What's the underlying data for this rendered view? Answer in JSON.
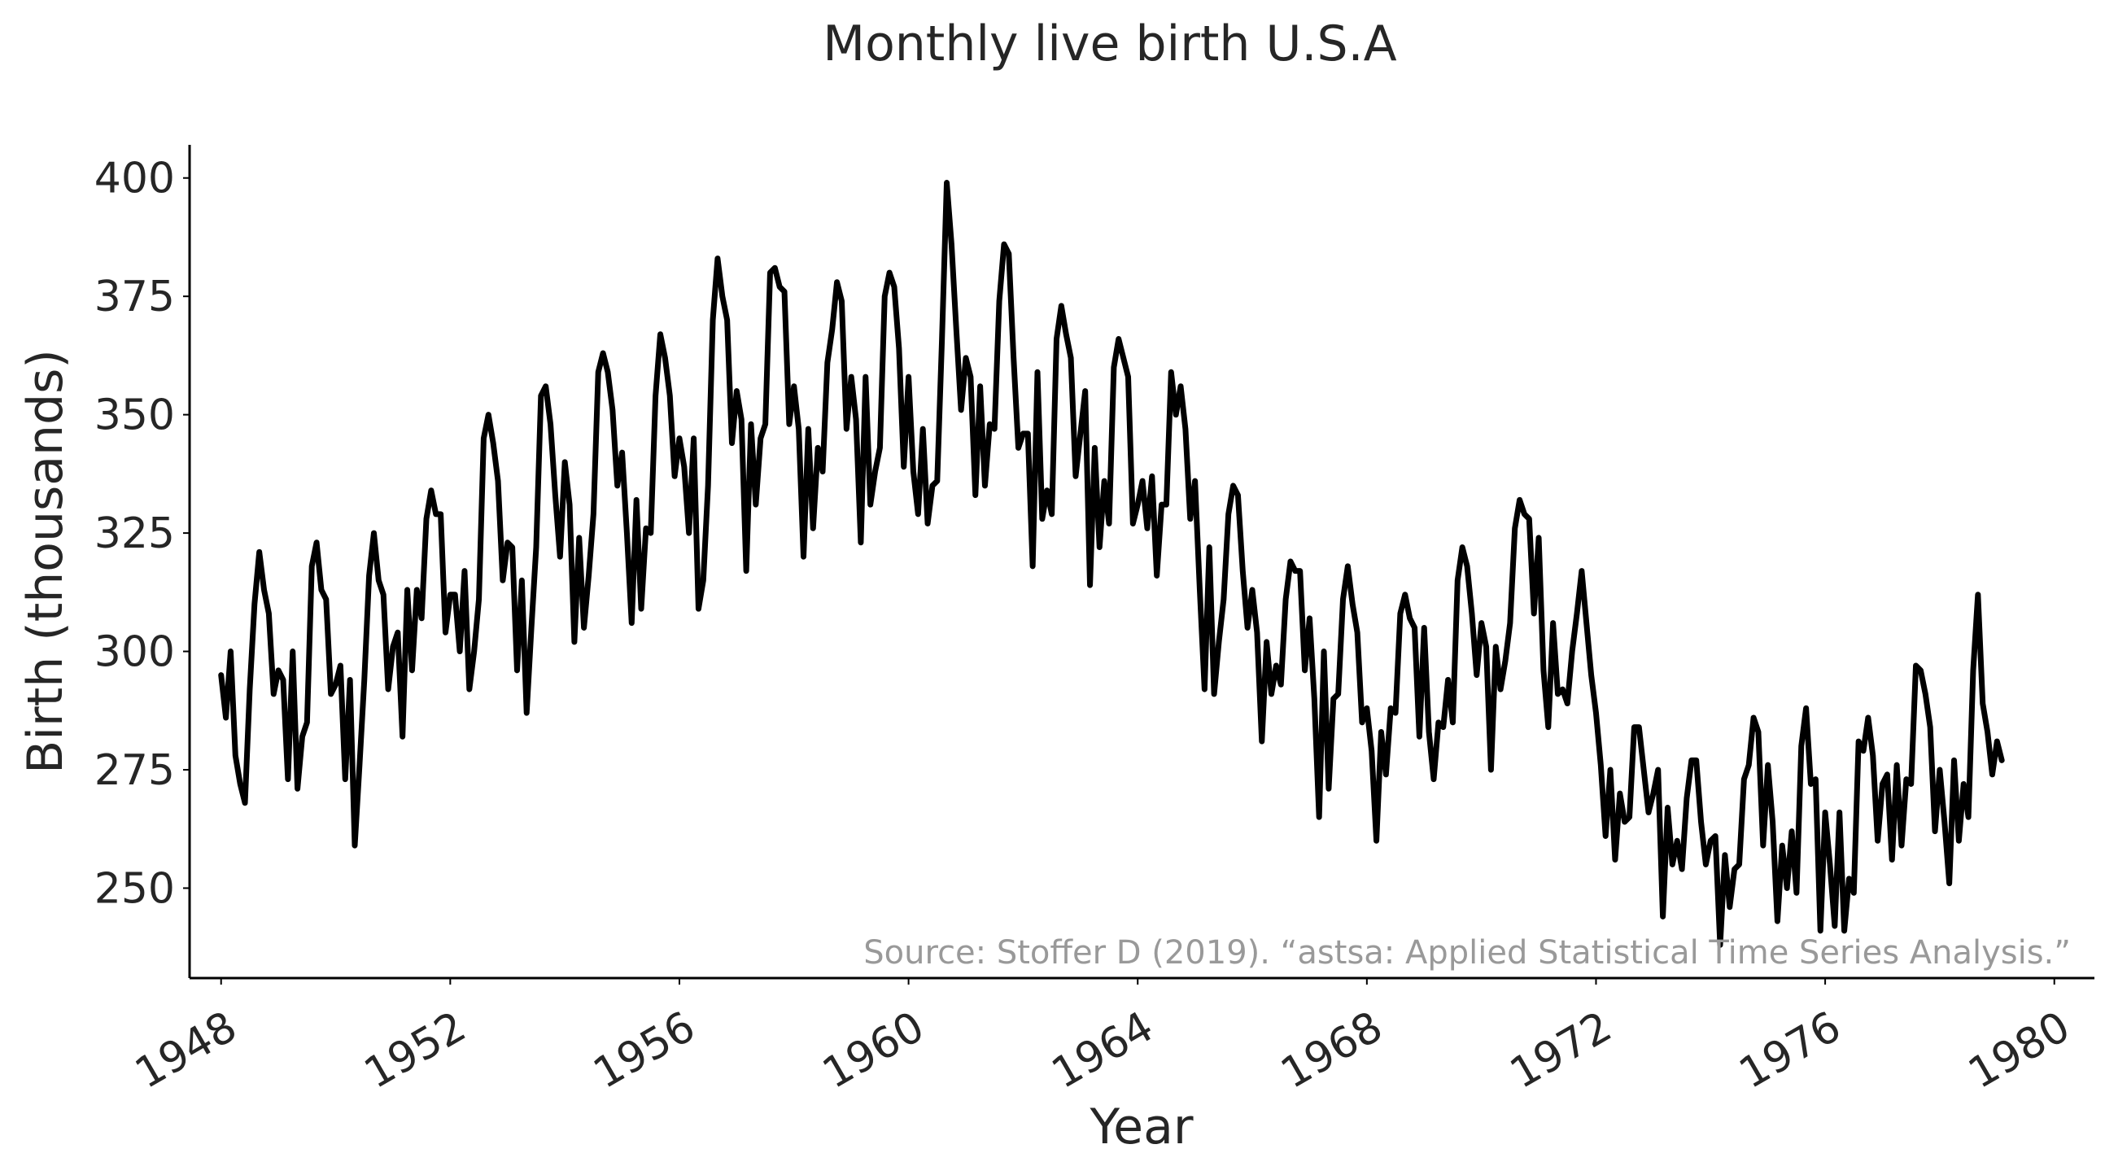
{
  "chart_data": {
    "type": "line",
    "title": "Monthly live birth U.S.A",
    "xlabel": "Year",
    "ylabel": "Birth (thousands)",
    "source_note": "Source: Stoffer D (2019). “astsa: Applied Statistical Time Series Analysis.”",
    "xlim": [
      1947.45,
      1980.7
    ],
    "ylim": [
      231,
      407
    ],
    "x_ticks": [
      1948,
      1952,
      1956,
      1960,
      1964,
      1968,
      1972,
      1976,
      1980
    ],
    "x_tick_labels": [
      "1948",
      "1952",
      "1956",
      "1960",
      "1964",
      "1968",
      "1972",
      "1976",
      "1980"
    ],
    "y_ticks": [
      250,
      275,
      300,
      325,
      350,
      375,
      400
    ],
    "y_tick_labels": [
      "250",
      "275",
      "300",
      "325",
      "350",
      "375",
      "400"
    ],
    "grid": false,
    "line_color": "#000000",
    "series": [
      {
        "x_start": "1948-01",
        "frequency": "monthly",
        "values": [
          295,
          286,
          300,
          278,
          272,
          268,
          292,
          310,
          321,
          313,
          308,
          291,
          296,
          294,
          273,
          300,
          271,
          282,
          285,
          318,
          323,
          313,
          311,
          291,
          293,
          297,
          273,
          294,
          259,
          276,
          294,
          316,
          325,
          315,
          312,
          292,
          301,
          304,
          282,
          313,
          296,
          313,
          307,
          328,
          334,
          329,
          329,
          304,
          312,
          312,
          300,
          317,
          292,
          300,
          311,
          345,
          350,
          344,
          336,
          315,
          323,
          322,
          296,
          315,
          287,
          305,
          322,
          354,
          356,
          348,
          333,
          320,
          340,
          331,
          302,
          324,
          305,
          316,
          329,
          359,
          363,
          359,
          351,
          335,
          342,
          325,
          306,
          332,
          309,
          326,
          325,
          354,
          367,
          362,
          354,
          337,
          345,
          339,
          325,
          345,
          309,
          315,
          335,
          370,
          383,
          375,
          370,
          344,
          355,
          349,
          317,
          348,
          331,
          345,
          348,
          380,
          381,
          377,
          376,
          348,
          356,
          347,
          320,
          347,
          326,
          343,
          338,
          361,
          368,
          378,
          374,
          347,
          358,
          349,
          323,
          358,
          331,
          338,
          343,
          375,
          380,
          377,
          364,
          339,
          358,
          338,
          329,
          347,
          327,
          335,
          336,
          366,
          399,
          386,
          368,
          351,
          362,
          358,
          333,
          356,
          335,
          348,
          347,
          374,
          386,
          384,
          362,
          343,
          346,
          346,
          318,
          359,
          328,
          334,
          329,
          366,
          373,
          367,
          362,
          337,
          346,
          355,
          314,
          343,
          322,
          336,
          327,
          360,
          366,
          362,
          358,
          327,
          331,
          336,
          326,
          337,
          316,
          331,
          331,
          359,
          350,
          356,
          347,
          328,
          336,
          313,
          292,
          322,
          291,
          302,
          311,
          329,
          335,
          333,
          317,
          305,
          313,
          304,
          281,
          302,
          291,
          297,
          293,
          311,
          319,
          317,
          317,
          296,
          307,
          290,
          265,
          300,
          271,
          290,
          291,
          311,
          318,
          310,
          304,
          285,
          288,
          279,
          260,
          283,
          274,
          288,
          287,
          308,
          312,
          307,
          305,
          282,
          305,
          283,
          273,
          285,
          284,
          294,
          285,
          315,
          322,
          318,
          308,
          295,
          306,
          301,
          275,
          301,
          292,
          298,
          306,
          326,
          332,
          329,
          328,
          308,
          324,
          296,
          284,
          306,
          291,
          292,
          289,
          300,
          308,
          317,
          306,
          295,
          287,
          276,
          261,
          275,
          256,
          270,
          264,
          265,
          284,
          284,
          275,
          266,
          270,
          275,
          244,
          267,
          255,
          260,
          254,
          269,
          277,
          277,
          264,
          255,
          260,
          261,
          238,
          257,
          246,
          254,
          255,
          273,
          276,
          286,
          283,
          259,
          276,
          264,
          243,
          259,
          250,
          262,
          249,
          280,
          288,
          272,
          273,
          241,
          266,
          255,
          242,
          266,
          241,
          252,
          249,
          281,
          279,
          286,
          278,
          260,
          272,
          274,
          256,
          276,
          259,
          273,
          272,
          297,
          296,
          291,
          284,
          262,
          275,
          264,
          251,
          277,
          260,
          272,
          265,
          296,
          312,
          289,
          283,
          274,
          281,
          277
        ]
      }
    ]
  }
}
